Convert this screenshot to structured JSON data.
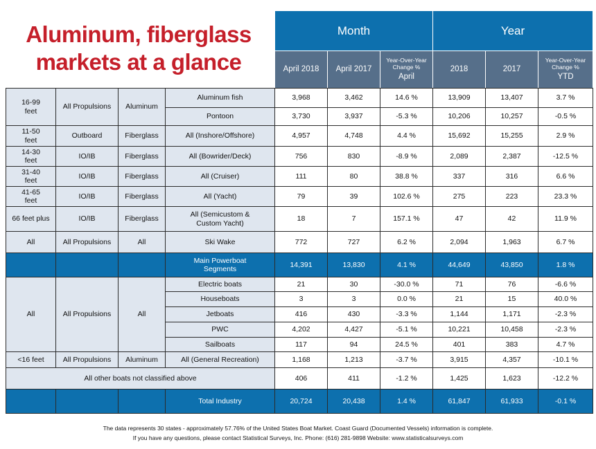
{
  "title": [
    "Aluminum, fiberglass",
    "markets at a glance"
  ],
  "table": {
    "groups": [
      "Month",
      "Year"
    ],
    "columns": [
      "April 2018",
      "April 2017",
      {
        "small": "Year-Over-Year\nChange %",
        "big": "April"
      },
      "2018",
      "2017",
      {
        "small": "Year-Over-Year\nChange %",
        "big": "YTD"
      }
    ],
    "segments": [
      {
        "length": "16-99\nfeet",
        "propulsion": "All Propulsions",
        "material": "Aluminum",
        "rows": [
          [
            "Aluminum fish",
            "3,968",
            "3,462",
            "14.6 %",
            "13,909",
            "13,407",
            "3.7 %"
          ],
          [
            "Pontoon",
            "3,730",
            "3,937",
            "-5.3 %",
            "10,206",
            "10,257",
            "-0.5 %"
          ]
        ]
      },
      {
        "length": "11-50\nfeet",
        "propulsion": "Outboard",
        "material": "Fiberglass",
        "rows": [
          [
            "All (Inshore/Offshore)",
            "4,957",
            "4,748",
            "4.4 %",
            "15,692",
            "15,255",
            "2.9 %"
          ]
        ]
      },
      {
        "length": "14-30\nfeet",
        "propulsion": "IO/IB",
        "material": "Fiberglass",
        "rows": [
          [
            "All (Bowrider/Deck)",
            "756",
            "830",
            "-8.9 %",
            "2,089",
            "2,387",
            "-12.5 %"
          ]
        ]
      },
      {
        "length": "31-40\nfeet",
        "propulsion": "IO/IB",
        "material": "Fiberglass",
        "rows": [
          [
            "All (Cruiser)",
            "111",
            "80",
            "38.8 %",
            "337",
            "316",
            "6.6 %"
          ]
        ]
      },
      {
        "length": "41-65\nfeet",
        "propulsion": "IO/IB",
        "material": "Fiberglass",
        "rows": [
          [
            "All (Yacht)",
            "79",
            "39",
            "102.6 %",
            "275",
            "223",
            "23.3 %"
          ]
        ]
      },
      {
        "length": "66 feet plus",
        "propulsion": "IO/IB",
        "material": "Fiberglass",
        "rows": [
          [
            "All (Semicustom &\nCustom Yacht)",
            "18",
            "7",
            "157.1 %",
            "47",
            "42",
            "11.9 %"
          ]
        ]
      },
      {
        "length": "All",
        "propulsion": "All Propulsions",
        "material": "All",
        "rows": [
          [
            "Ski Wake",
            "772",
            "727",
            "6.2 %",
            "2,094",
            "1,963",
            "6.7 %"
          ]
        ]
      },
      {
        "highlight": true,
        "rows": [
          [
            "Main Powerboat\nSegments",
            "14,391",
            "13,830",
            "4.1 %",
            "44,649",
            "43,850",
            "1.8 %"
          ]
        ]
      },
      {
        "length": "All",
        "propulsion": "All Propulsions",
        "material": "All",
        "rows": [
          [
            "Electric boats",
            "21",
            "30",
            "-30.0 %",
            "71",
            "76",
            "-6.6 %"
          ],
          [
            "Houseboats",
            "3",
            "3",
            "0.0 %",
            "21",
            "15",
            "40.0 %"
          ],
          [
            "Jetboats",
            "416",
            "430",
            "-3.3 %",
            "1,144",
            "1,171",
            "-2.3 %"
          ],
          [
            "PWC",
            "4,202",
            "4,427",
            "-5.1 %",
            "10,221",
            "10,458",
            "-2.3 %"
          ],
          [
            "Sailboats",
            "117",
            "94",
            "24.5 %",
            "401",
            "383",
            "4.7 %"
          ]
        ]
      },
      {
        "length": "<16 feet",
        "propulsion": "All Propulsions",
        "material": "Aluminum",
        "rows": [
          [
            "All (General Recreation)",
            "1,168",
            "1,213",
            "-3.7 %",
            "3,915",
            "4,357",
            "-10.1 %"
          ]
        ]
      },
      {
        "span": true,
        "rows": [
          [
            "All other boats not classified above",
            "406",
            "411",
            "-1.2 %",
            "1,425",
            "1,623",
            "-12.2 %"
          ]
        ]
      },
      {
        "highlight": true,
        "rows": [
          [
            "Total Industry",
            "20,724",
            "20,438",
            "1.4 %",
            "61,847",
            "61,933",
            "-0.1 %"
          ]
        ]
      }
    ]
  },
  "footnote": [
    "The data represents 30 states - approximately 57.76% of the United States Boat Market. Coast Guard (Documented Vessels) information is complete.",
    "If you have any questions, please contact Statistical Surveys, Inc. Phone: (616) 281-9898 Website: www.statisticalsurveys.com"
  ]
}
